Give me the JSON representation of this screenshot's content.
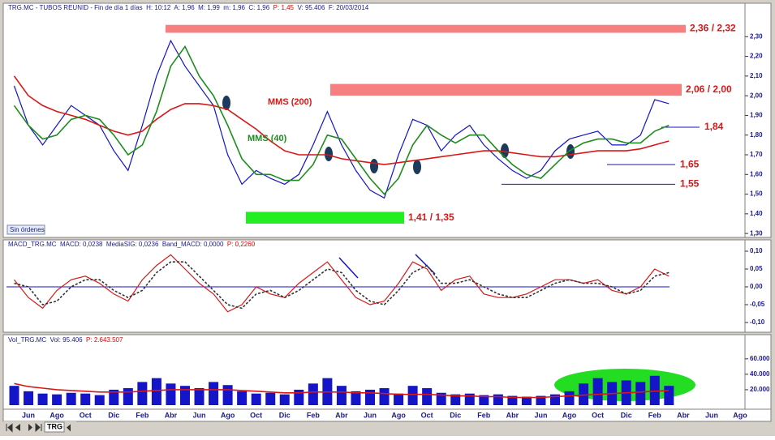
{
  "ui": {
    "button": "Sin órdenes",
    "tab": "TRG"
  },
  "chart_data": [
    {
      "type": "line",
      "header": [
        {
          "text": "TRG.MC - TUBOS REUNID - Fin de día 1 días  H: 10:12  A: 1,96  M: 1,99  m: 1,96  C: 1,96  ",
          "color": "#1a1a8c"
        },
        {
          "text": "P: 1,45",
          "color": "#e00000"
        },
        {
          "text": "  V: 95.406  F: 20/03/2014",
          "color": "#1a1a8c"
        }
      ],
      "ylim": [
        1.28,
        2.4
      ],
      "yticks": [
        {
          "value": 1.3,
          "label": "1,30"
        },
        {
          "value": 1.4,
          "label": "1,40"
        },
        {
          "value": 1.5,
          "label": "1,50"
        },
        {
          "value": 1.6,
          "label": "1,60"
        },
        {
          "value": 1.7,
          "label": "1,70"
        },
        {
          "value": 1.8,
          "label": "1,80"
        },
        {
          "value": 1.9,
          "label": "1,90"
        },
        {
          "value": 2.0,
          "label": "2,00"
        },
        {
          "value": 2.1,
          "label": "2,10"
        },
        {
          "value": 2.2,
          "label": "2,20"
        },
        {
          "value": 2.3,
          "label": "2,30"
        }
      ],
      "series": [
        {
          "color": "#1414c8",
          "values": [
            2.05,
            1.85,
            1.75,
            1.85,
            1.95,
            1.9,
            1.85,
            1.72,
            1.62,
            1.85,
            2.1,
            2.28,
            2.15,
            2.05,
            1.95,
            1.7,
            1.55,
            1.62,
            1.58,
            1.55,
            1.6,
            1.75,
            1.92,
            1.75,
            1.62,
            1.52,
            1.48,
            1.7,
            1.88,
            1.85,
            1.72,
            1.8,
            1.85,
            1.75,
            1.68,
            1.62,
            1.58,
            1.62,
            1.72,
            1.78,
            1.8,
            1.82,
            1.75,
            1.75,
            1.8,
            1.98,
            1.96,
            null,
            null,
            null,
            null,
            null,
            null
          ]
        },
        {
          "name": "MMS (200)",
          "color": "#d81818",
          "values": [
            2.1,
            2.0,
            1.95,
            1.92,
            1.9,
            1.88,
            1.85,
            1.82,
            1.8,
            1.82,
            1.88,
            1.93,
            1.96,
            1.96,
            1.95,
            1.93,
            1.88,
            1.83,
            1.77,
            1.72,
            1.7,
            1.7,
            1.7,
            1.68,
            1.67,
            1.66,
            1.65,
            1.66,
            1.67,
            1.68,
            1.69,
            1.7,
            1.71,
            1.72,
            1.72,
            1.71,
            1.7,
            1.69,
            1.69,
            1.7,
            1.71,
            1.72,
            1.72,
            1.72,
            1.73,
            1.75,
            1.77,
            null,
            null,
            null,
            null,
            null,
            null
          ]
        },
        {
          "name": "MMS (40)",
          "color": "#1e8c1e",
          "values": [
            1.95,
            1.85,
            1.78,
            1.8,
            1.88,
            1.9,
            1.88,
            1.8,
            1.7,
            1.75,
            1.92,
            2.15,
            2.25,
            2.1,
            2.0,
            1.85,
            1.68,
            1.6,
            1.6,
            1.57,
            1.57,
            1.65,
            1.8,
            1.78,
            1.68,
            1.58,
            1.5,
            1.58,
            1.75,
            1.85,
            1.8,
            1.76,
            1.8,
            1.8,
            1.72,
            1.65,
            1.6,
            1.58,
            1.65,
            1.72,
            1.76,
            1.78,
            1.78,
            1.76,
            1.76,
            1.82,
            1.85,
            null,
            null,
            null,
            null,
            null,
            null
          ]
        }
      ],
      "zones": [
        {
          "label": "2,36 / 2,32",
          "top": 2.36,
          "bottom": 2.32,
          "color": "#f77f7f"
        },
        {
          "label": "2,06 / 2,00",
          "top": 2.06,
          "bottom": 2.0,
          "color": "#f77f7f"
        },
        {
          "label": "1,41 / 1,35",
          "top": 1.41,
          "bottom": 1.35,
          "color": "#22ee22"
        }
      ],
      "levels": [
        {
          "value": 1.84,
          "label": "1,84"
        },
        {
          "value": 1.65,
          "label": "1,65"
        },
        {
          "value": 1.55,
          "label": "1,55"
        }
      ]
    },
    {
      "type": "line",
      "header": [
        {
          "text": "MACD_TRG.MC  MACD: 0,0238  MediaSIG: 0,0236  Band_MACD: 0,0000  ",
          "color": "#1a1a8c"
        },
        {
          "text": "P: 0,2260",
          "color": "#e00000"
        }
      ],
      "ylim": [
        -0.125,
        0.125
      ],
      "yticks": [
        {
          "value": -0.1,
          "label": "-0,10"
        },
        {
          "value": -0.05,
          "label": "-0,05"
        },
        {
          "value": 0,
          "label": "0,00"
        },
        {
          "value": 0.05,
          "label": "0,05"
        },
        {
          "value": 0.1,
          "label": "0,10"
        }
      ],
      "series": [
        {
          "color": "#d81818",
          "values": [
            0.02,
            -0.03,
            -0.06,
            -0.01,
            0.02,
            0.03,
            0.01,
            -0.02,
            -0.04,
            0.02,
            0.06,
            0.09,
            0.05,
            0.01,
            -0.02,
            -0.07,
            -0.05,
            0.0,
            -0.02,
            -0.03,
            0.01,
            0.04,
            0.07,
            0.02,
            -0.03,
            -0.05,
            -0.04,
            0.01,
            0.07,
            0.05,
            -0.01,
            0.02,
            0.03,
            -0.02,
            -0.03,
            -0.03,
            -0.02,
            0.0,
            0.02,
            0.02,
            0.01,
            0.02,
            -0.01,
            -0.02,
            0.0,
            0.05,
            0.03,
            null,
            null,
            null,
            null,
            null,
            null
          ]
        },
        {
          "color": "#333333",
          "dashed": true,
          "values": [
            0.01,
            0.0,
            -0.05,
            -0.04,
            0.0,
            0.02,
            0.02,
            -0.01,
            -0.03,
            -0.01,
            0.04,
            0.07,
            0.07,
            0.03,
            -0.01,
            -0.05,
            -0.06,
            -0.02,
            -0.01,
            -0.03,
            -0.01,
            0.02,
            0.05,
            0.04,
            -0.01,
            -0.04,
            -0.05,
            -0.01,
            0.04,
            0.06,
            0.01,
            0.01,
            0.02,
            0.0,
            -0.02,
            -0.03,
            -0.03,
            -0.01,
            0.01,
            0.02,
            0.01,
            0.01,
            0.0,
            -0.02,
            -0.01,
            0.03,
            0.04,
            null,
            null,
            null,
            null,
            null,
            null
          ]
        }
      ]
    },
    {
      "type": "bar",
      "header": [
        {
          "text": "Vol_TRG.MC  Vol: 95.406  ",
          "color": "#1a1a8c"
        },
        {
          "text": "P: 2.643.507",
          "color": "#e00000"
        }
      ],
      "categories": [
        null,
        "Jun",
        null,
        "Ago",
        null,
        "Oct",
        null,
        "Dic",
        null,
        "Feb",
        null,
        "Abr",
        null,
        "Jun",
        null,
        "Ago",
        null,
        "Oct",
        null,
        "Dic",
        null,
        "Feb",
        null,
        "Abr",
        null,
        "Jun",
        null,
        "Ago",
        null,
        "Oct",
        null,
        "Dic",
        null,
        "Feb",
        null,
        "Abr",
        null,
        "Jun",
        null,
        "Ago",
        null,
        "Oct",
        null,
        "Dic",
        null,
        "Feb",
        null,
        "Abr",
        null,
        "Jun",
        null,
        "Ago",
        null
      ],
      "ylim": [
        0,
        85000
      ],
      "yticks": [
        {
          "value": 20000,
          "label": "20.000"
        },
        {
          "value": 40000,
          "label": "40.000"
        },
        {
          "value": 60000,
          "label": "60.000"
        }
      ],
      "series": [
        {
          "type": "bar",
          "color": "#1414c8",
          "values": [
            25000,
            18000,
            15000,
            14000,
            16000,
            15000,
            13000,
            20000,
            22000,
            30000,
            35000,
            28000,
            25000,
            22000,
            30000,
            26000,
            18000,
            15000,
            16000,
            14000,
            20000,
            28000,
            35000,
            25000,
            18000,
            20000,
            22000,
            15000,
            25000,
            22000,
            16000,
            14000,
            15000,
            13000,
            14000,
            12000,
            11000,
            12000,
            14000,
            18000,
            28000,
            35000,
            30000,
            32000,
            30000,
            38000,
            25000,
            null,
            null,
            null,
            null,
            null,
            null
          ]
        },
        {
          "type": "line",
          "color": "#d81818",
          "values": [
            28000,
            24000,
            22000,
            20000,
            19000,
            18000,
            17000,
            17000,
            17000,
            18000,
            19000,
            20000,
            20000,
            20000,
            20000,
            20000,
            19000,
            18000,
            17000,
            16000,
            16000,
            17000,
            17000,
            17000,
            16000,
            16000,
            15000,
            14000,
            14000,
            14000,
            13000,
            12000,
            12000,
            11000,
            11000,
            10000,
            10000,
            10000,
            11000,
            12000,
            13000,
            14000,
            15000,
            16000,
            17000,
            18000,
            19000,
            null,
            null,
            null,
            null,
            null,
            null
          ]
        }
      ]
    }
  ]
}
